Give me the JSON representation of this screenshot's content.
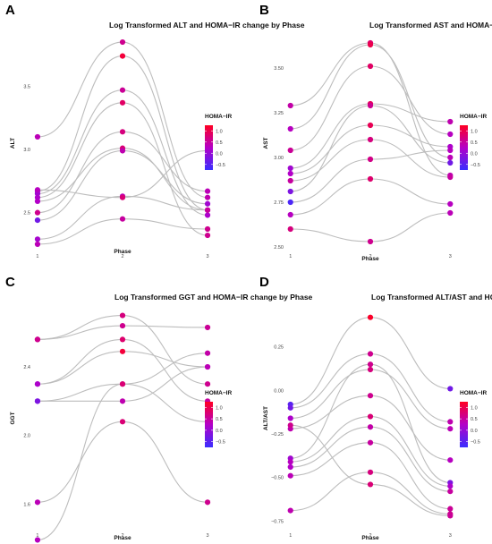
{
  "colors": {
    "low": "#3a2eff",
    "mid": "#b300c8",
    "high": "#ff0022",
    "line": "#bdbdbd"
  },
  "chart_data": [
    {
      "type": "line",
      "panel": "A",
      "title": "Log Transformed ALT and HOMA−IR change by Phase",
      "xlabel": "Phase",
      "ylabel": "ALT",
      "x": [
        1,
        2,
        3
      ],
      "x_ticks": [
        "1",
        "2",
        "3"
      ],
      "ylim": [
        2.2,
        3.9
      ],
      "y_ticks": [
        "2.5",
        "3.0",
        "3.5"
      ],
      "y_tick_values": [
        2.5,
        3.0,
        3.5
      ],
      "legend_title": "HOMA−IR",
      "legend_ticks": [
        "1.0",
        "0.5",
        "0.0",
        "−0.5"
      ],
      "legend_tick_values": [
        1.0,
        0.5,
        0.0,
        -0.5
      ],
      "legend_range": [
        -0.75,
        1.25
      ],
      "series": [
        {
          "values": [
            3.1,
            3.85,
            2.62
          ],
          "homa": [
            0.35,
            0.6,
            0.4
          ]
        },
        {
          "values": [
            2.67,
            3.74,
            2.52
          ],
          "homa": [
            0.15,
            1.1,
            0.3
          ]
        },
        {
          "values": [
            2.65,
            3.47,
            2.48
          ],
          "homa": [
            0.1,
            0.55,
            0.2
          ]
        },
        {
          "values": [
            2.62,
            3.37,
            2.32
          ],
          "homa": [
            0.2,
            0.85,
            0.6
          ]
        },
        {
          "values": [
            2.5,
            3.14,
            2.67
          ],
          "homa": [
            0.6,
            0.7,
            0.35
          ]
        },
        {
          "values": [
            2.59,
            3.01,
            2.52
          ],
          "homa": [
            0.25,
            0.75,
            0.45
          ]
        },
        {
          "values": [
            2.44,
            2.99,
            2.57
          ],
          "homa": [
            -0.3,
            0.4,
            0.1
          ]
        },
        {
          "values": [
            2.29,
            2.63,
            2.52
          ],
          "homa": [
            0.15,
            0.35,
            0.5
          ]
        },
        {
          "values": [
            2.25,
            2.45,
            2.37
          ],
          "homa": [
            0.35,
            0.5,
            0.6
          ]
        },
        {
          "values": [
            2.68,
            2.62,
            2.99
          ],
          "homa": [
            0.3,
            0.75,
            -0.4
          ]
        }
      ]
    },
    {
      "type": "line",
      "panel": "B",
      "title": "Log Transformed AST and HOMA−IR change by Phase",
      "xlabel": "Phase",
      "ylabel": "AST",
      "x": [
        1,
        2,
        3
      ],
      "x_ticks": [
        "1",
        "2",
        "3"
      ],
      "ylim": [
        2.48,
        3.68
      ],
      "y_ticks": [
        "2.50",
        "2.75",
        "3.00",
        "3.25",
        "3.50"
      ],
      "y_tick_values": [
        2.5,
        2.75,
        3.0,
        3.25,
        3.5
      ],
      "legend_title": "HOMA−IR",
      "legend_ticks": [
        "1.0",
        "0.5",
        "0.0",
        "−0.5"
      ],
      "legend_tick_values": [
        1.0,
        0.5,
        0.0,
        -0.5
      ],
      "legend_range": [
        -0.75,
        1.25
      ],
      "series": [
        {
          "values": [
            3.29,
            3.64,
            2.9
          ],
          "homa": [
            0.45,
            0.8,
            0.4
          ]
        },
        {
          "values": [
            3.16,
            3.63,
            3.0
          ],
          "homa": [
            0.3,
            1.0,
            0.35
          ]
        },
        {
          "values": [
            3.04,
            3.51,
            3.13
          ],
          "homa": [
            0.55,
            0.85,
            0.3
          ]
        },
        {
          "values": [
            2.94,
            3.3,
            3.2
          ],
          "homa": [
            0.1,
            0.9,
            0.4
          ]
        },
        {
          "values": [
            2.91,
            3.18,
            3.06
          ],
          "homa": [
            0.25,
            0.95,
            0.2
          ]
        },
        {
          "values": [
            2.87,
            3.1,
            2.89
          ],
          "homa": [
            0.5,
            0.7,
            0.5
          ]
        },
        {
          "values": [
            2.81,
            3.29,
            2.97
          ],
          "homa": [
            -0.2,
            0.6,
            -0.3
          ]
        },
        {
          "values": [
            2.75,
            2.99,
            3.04
          ],
          "homa": [
            -0.6,
            0.65,
            0.3
          ]
        },
        {
          "values": [
            2.68,
            2.88,
            2.74
          ],
          "homa": [
            0.3,
            0.8,
            0.3
          ]
        },
        {
          "values": [
            2.6,
            2.53,
            2.69
          ],
          "homa": [
            0.7,
            0.6,
            0.35
          ]
        }
      ]
    },
    {
      "type": "line",
      "panel": "C",
      "title": "Log Transformed GGT and HOMA−IR change by Phase",
      "xlabel": "Phase",
      "ylabel": "GGT",
      "x": [
        1,
        2,
        3
      ],
      "x_ticks": [
        "1",
        "2",
        "3"
      ],
      "ylim": [
        1.45,
        2.75
      ],
      "y_ticks": [
        "1.6",
        "2.0",
        "2.4"
      ],
      "y_tick_values": [
        1.6,
        2.0,
        2.4
      ],
      "legend_title": "HOMA−IR",
      "legend_ticks": [
        "1.0",
        "0.5",
        "0.0",
        "−0.5"
      ],
      "legend_tick_values": [
        1.0,
        0.5,
        0.0,
        -0.5
      ],
      "legend_range": [
        -0.75,
        1.25
      ],
      "series": [
        {
          "values": [
            2.56,
            2.7,
            2.3
          ],
          "homa": [
            0.6,
            0.7,
            0.6
          ]
        },
        {
          "values": [
            2.56,
            2.64,
            2.63
          ],
          "homa": [
            0.6,
            0.6,
            0.55
          ]
        },
        {
          "values": [
            2.3,
            2.56,
            2.2
          ],
          "homa": [
            0.2,
            0.8,
            0.5
          ]
        },
        {
          "values": [
            2.3,
            2.49,
            2.4
          ],
          "homa": [
            0.2,
            1.1,
            0.35
          ]
        },
        {
          "values": [
            2.2,
            2.3,
            2.08
          ],
          "homa": [
            -0.2,
            0.7,
            0.3
          ]
        },
        {
          "values": [
            2.2,
            2.2,
            2.4
          ],
          "homa": [
            -0.2,
            0.4,
            0.35
          ]
        },
        {
          "values": [
            1.61,
            2.08,
            1.61
          ],
          "homa": [
            0.35,
            0.75,
            0.6
          ]
        },
        {
          "values": [
            1.39,
            2.3,
            2.48
          ],
          "homa": [
            0.3,
            0.75,
            0.45
          ]
        }
      ]
    },
    {
      "type": "line",
      "panel": "D",
      "title": "Log Transformed ALT/AST and HOMA−IR change by Phase",
      "xlabel": "Phase",
      "ylabel": "ALT/AST",
      "x": [
        1,
        2,
        3
      ],
      "x_ticks": [
        "1",
        "2",
        "3"
      ],
      "ylim": [
        -0.8,
        0.48
      ],
      "y_ticks": [
        "−0.75",
        "−0.50",
        "−0.25",
        "0.00",
        "0.25"
      ],
      "y_tick_values": [
        -0.75,
        -0.5,
        -0.25,
        0.0,
        0.25
      ],
      "legend_title": "HOMA−IR",
      "legend_ticks": [
        "1.0",
        "0.5",
        "0.0",
        "−0.5"
      ],
      "legend_tick_values": [
        1.0,
        0.5,
        0.0,
        -0.5
      ],
      "legend_range": [
        -0.75,
        1.25
      ],
      "series": [
        {
          "values": [
            -0.08,
            0.42,
            0.01
          ],
          "homa": [
            -0.5,
            1.2,
            -0.3
          ]
        },
        {
          "values": [
            -0.1,
            0.21,
            -0.18
          ],
          "homa": [
            -0.3,
            0.6,
            0.4
          ]
        },
        {
          "values": [
            -0.16,
            0.12,
            -0.22
          ],
          "homa": [
            0.2,
            0.7,
            0.35
          ]
        },
        {
          "values": [
            -0.22,
            -0.03,
            -0.4
          ],
          "homa": [
            0.4,
            0.6,
            0.3
          ]
        },
        {
          "values": [
            -0.39,
            0.15,
            -0.53
          ],
          "homa": [
            0.1,
            0.6,
            -0.2
          ]
        },
        {
          "values": [
            -0.41,
            -0.15,
            -0.55
          ],
          "homa": [
            0.3,
            0.75,
            0.2
          ]
        },
        {
          "values": [
            -0.44,
            -0.21,
            -0.58
          ],
          "homa": [
            0.25,
            0.45,
            0.5
          ]
        },
        {
          "values": [
            -0.49,
            -0.3,
            -0.68
          ],
          "homa": [
            0.35,
            0.5,
            0.55
          ]
        },
        {
          "values": [
            -0.69,
            -0.47,
            -0.71
          ],
          "homa": [
            0.4,
            0.7,
            0.6
          ]
        },
        {
          "values": [
            -0.2,
            -0.54,
            -0.72
          ],
          "homa": [
            0.6,
            0.75,
            0.55
          ]
        }
      ]
    }
  ]
}
